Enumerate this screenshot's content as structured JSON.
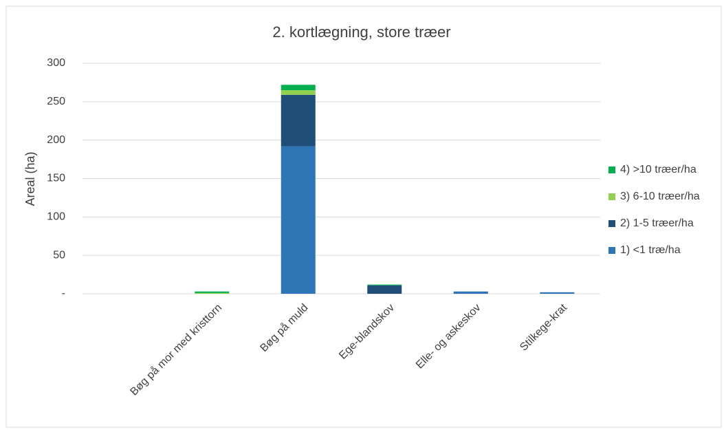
{
  "chart_data": {
    "type": "stacked_bar",
    "title": "2. kortlægning, store træer",
    "ylabel": "Areal (ha)",
    "categories": [
      null,
      "Bøg på mor med kristtorn",
      "Bøg på muld",
      "Ege-blandskov",
      "Elle- og askeskov",
      "Stilkege-krat"
    ],
    "series": [
      {
        "name": "1) <1 træ/ha",
        "color": "#2e75b6",
        "values": [
          0,
          0,
          192,
          0,
          3,
          2
        ]
      },
      {
        "name": "2) 1-5 træer/ha",
        "color": "#1f4e79",
        "values": [
          0,
          0,
          67,
          11,
          0,
          0
        ]
      },
      {
        "name": "3) 6-10 træer/ha",
        "color": "#92d050",
        "values": [
          0,
          1,
          6,
          0,
          0,
          0
        ]
      },
      {
        "name": "4) >10 træer/ha",
        "color": "#00b050",
        "values": [
          0,
          2,
          7,
          1,
          0,
          0
        ]
      }
    ],
    "ylim": [
      0,
      300
    ],
    "yticks": [
      {
        "value": 0,
        "label": "-"
      },
      50,
      100,
      150,
      200,
      250,
      300
    ],
    "grid": true,
    "legend": "right"
  }
}
